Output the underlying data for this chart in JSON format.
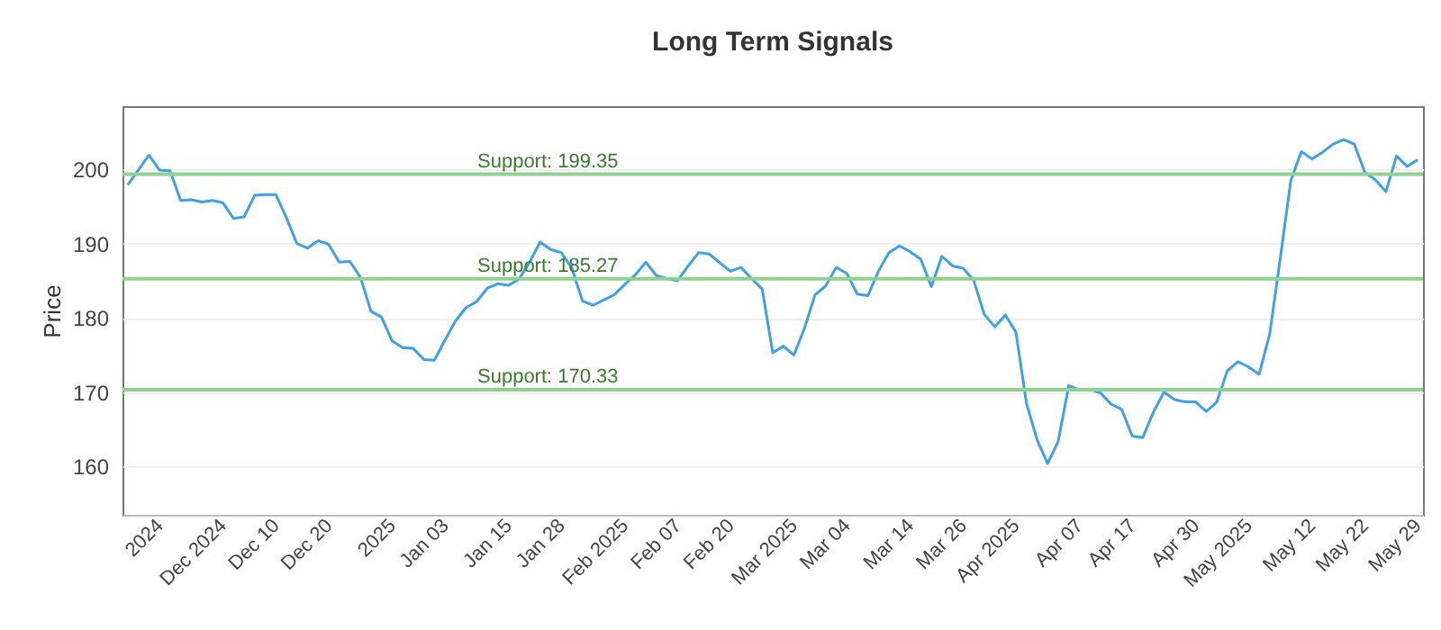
{
  "chart_data": {
    "type": "line",
    "title": "Long Term Signals",
    "ylabel": "Price",
    "categories": [
      null,
      null,
      null,
      "2024",
      null,
      null,
      null,
      null,
      null,
      "Dec 2024",
      null,
      null,
      null,
      null,
      "Dec 10",
      null,
      null,
      null,
      null,
      "Dec 20",
      null,
      null,
      null,
      null,
      null,
      "2025",
      null,
      null,
      null,
      null,
      "Jan 03",
      null,
      null,
      null,
      null,
      null,
      "Jan 15",
      null,
      null,
      null,
      null,
      "Jan 28",
      null,
      null,
      null,
      null,
      null,
      "Feb 2025",
      null,
      null,
      null,
      null,
      "Feb 07",
      null,
      null,
      null,
      null,
      "Feb 20",
      null,
      null,
      null,
      null,
      null,
      "Mar 2025",
      null,
      null,
      null,
      null,
      "Mar 04",
      null,
      null,
      null,
      null,
      null,
      "Mar 14",
      null,
      null,
      null,
      null,
      "Mar 26",
      null,
      null,
      null,
      null,
      "Apr 2025",
      null,
      null,
      null,
      null,
      null,
      "Apr 07",
      null,
      null,
      null,
      null,
      "Apr 17",
      null,
      null,
      null,
      null,
      null,
      "Apr 30",
      null,
      null,
      null,
      null,
      "May 2025",
      null,
      null,
      null,
      null,
      null,
      "May 12",
      null,
      null,
      null,
      null,
      "May 22",
      null,
      null,
      null,
      null,
      "May 29"
    ],
    "series": [
      {
        "color": "#3ea0e6",
        "values": [
          197.9,
          199.9,
          201.9,
          199.9,
          199.8,
          195.8,
          195.9,
          195.6,
          195.8,
          195.5,
          193.4,
          193.6,
          196.5,
          196.6,
          196.6,
          193.5,
          190.0,
          189.4,
          190.4,
          189.9,
          187.5,
          187.6,
          185.5,
          180.9,
          180.1,
          176.9,
          176.0,
          175.9,
          174.4,
          174.3,
          177.0,
          179.6,
          181.4,
          182.2,
          184.0,
          184.6,
          184.4,
          185.2,
          187.5,
          190.2,
          189.2,
          188.8,
          186.7,
          182.3,
          181.7,
          182.4,
          183.1,
          184.5,
          185.8,
          187.5,
          185.7,
          185.3,
          185.0,
          187.0,
          188.8,
          188.6,
          187.4,
          186.3,
          186.8,
          185.3,
          183.9,
          175.3,
          176.2,
          175.0,
          178.6,
          183.1,
          184.3,
          186.8,
          186.0,
          183.2,
          183.0,
          186.3,
          188.8,
          189.7,
          188.9,
          187.9,
          184.2,
          188.3,
          187.0,
          186.7,
          185.1,
          180.5,
          178.8,
          180.4,
          178.1,
          168.5,
          163.6,
          160.4,
          163.4,
          170.9,
          170.3,
          170.4,
          169.9,
          168.4,
          167.7,
          164.1,
          163.9,
          167.3,
          170.0,
          169.0,
          168.7,
          168.7,
          167.4,
          168.7,
          172.9,
          174.1,
          173.4,
          172.4,
          177.8,
          188.0,
          198.5,
          202.4,
          201.4,
          202.3,
          203.4,
          204.0,
          203.4,
          199.6,
          198.6,
          197.0,
          201.8,
          200.4,
          201.3
        ]
      }
    ],
    "ylim": [
      153.5,
      208.5
    ],
    "yticks": [
      160,
      170,
      180,
      190,
      200
    ],
    "grid": "y",
    "marker": "none",
    "line_style": "solid",
    "ref_lines": [
      {
        "axis": "y",
        "value": 199.35,
        "label": "Support: 199.35",
        "color": "#8fd18f"
      },
      {
        "axis": "y",
        "value": 185.27,
        "label": "Support: 185.27",
        "color": "#8fd18f"
      },
      {
        "axis": "y",
        "value": 170.33,
        "label": "Support: 170.33",
        "color": "#8fd18f"
      }
    ]
  }
}
